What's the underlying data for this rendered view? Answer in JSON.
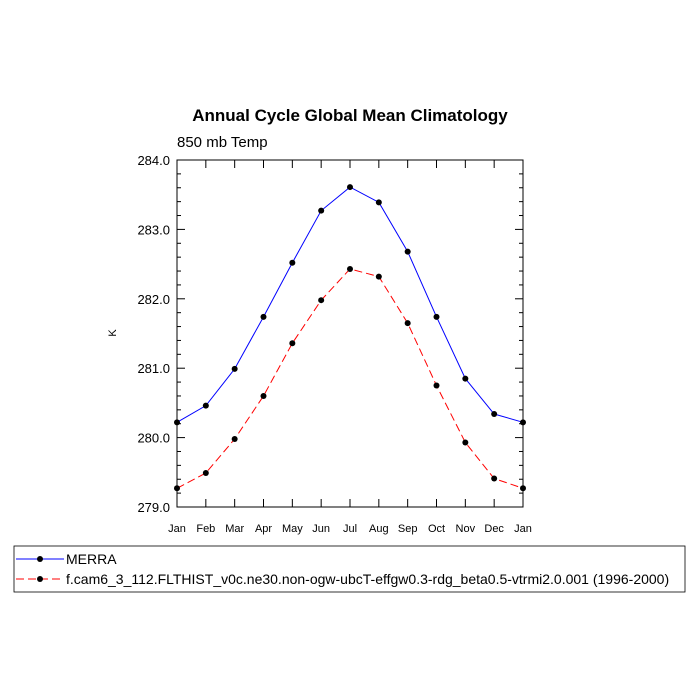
{
  "chart_data": {
    "type": "line",
    "title": "Annual Cycle Global Mean Climatology",
    "subtitle": "850 mb Temp",
    "xlabel": "",
    "ylabel": "K",
    "ylim": [
      279.0,
      284.0
    ],
    "yticks": [
      "279.0",
      "280.0",
      "281.0",
      "282.0",
      "283.0",
      "284.0"
    ],
    "ytick_values": [
      279.0,
      280.0,
      281.0,
      282.0,
      283.0,
      284.0
    ],
    "categories": [
      "Jan",
      "Feb",
      "Mar",
      "Apr",
      "May",
      "Jun",
      "Jul",
      "Aug",
      "Sep",
      "Oct",
      "Nov",
      "Dec",
      "Jan"
    ],
    "series": [
      {
        "name": "MERRA",
        "color": "#0000ff",
        "dashed": false,
        "values": [
          280.22,
          280.46,
          280.99,
          281.74,
          282.52,
          283.27,
          283.61,
          283.39,
          282.68,
          281.74,
          280.85,
          280.34,
          280.22
        ]
      },
      {
        "name": "f.cam6_3_112.FLTHIST_v0c.ne30.non-ogw-ubcT-effgw0.3-rdg_beta0.5-vtrmi2.0.001 (1996-2000)",
        "color": "#ff0000",
        "dashed": true,
        "values": [
          279.27,
          279.49,
          279.98,
          280.6,
          281.36,
          281.98,
          282.43,
          282.32,
          281.65,
          280.75,
          279.93,
          279.41,
          279.27
        ]
      }
    ],
    "legend_position": "bottom"
  }
}
